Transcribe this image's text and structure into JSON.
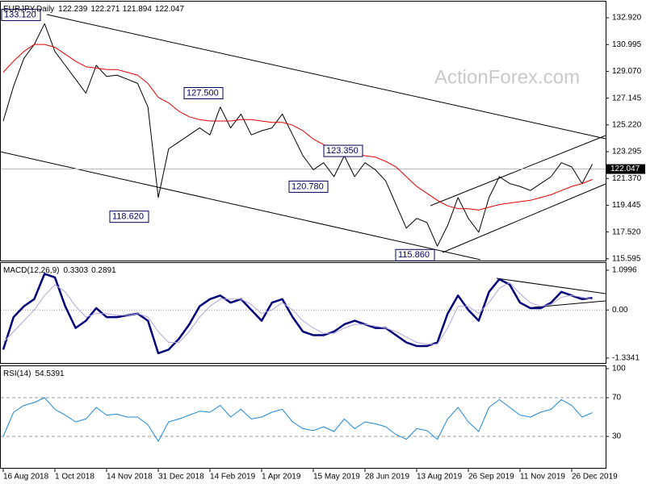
{
  "chart_data": [
    {
      "type": "line",
      "title": "EURJPY,Daily",
      "readings": [
        122.239,
        122.271,
        121.894,
        122.047
      ],
      "watermark": "ActionForex.com",
      "ylim": [
        115.47,
        134.08
      ],
      "yticks": [
        {
          "value": 132.92,
          "label": "132.920"
        },
        {
          "value": 130.995,
          "label": "130.995"
        },
        {
          "value": 129.07,
          "label": "129.070"
        },
        {
          "value": 127.145,
          "label": "127.145"
        },
        {
          "value": 125.22,
          "label": "125.220"
        },
        {
          "value": 123.295,
          "label": "123.295"
        },
        {
          "value": 121.37,
          "label": "121.370"
        },
        {
          "value": 119.445,
          "label": "119.445"
        },
        {
          "value": 117.52,
          "label": "117.520"
        },
        {
          "value": 115.595,
          "label": "115.595"
        }
      ],
      "last_price": 122.047,
      "annotations": [
        {
          "value": 133.12,
          "label": "133.120"
        },
        {
          "value": 127.5,
          "label": "127.500"
        },
        {
          "value": 123.35,
          "label": "123.350"
        },
        {
          "value": 120.78,
          "label": "120.780"
        },
        {
          "value": 118.62,
          "label": "118.620"
        },
        {
          "value": 115.86,
          "label": "115.860"
        }
      ],
      "series": [
        {
          "color": "#000000",
          "values": [
            125.5,
            128,
            130,
            131,
            132.5,
            130.5,
            129.5,
            128.5,
            127.5,
            129.5,
            128.7,
            128.8,
            128.5,
            128.2,
            126.5,
            120,
            123.5,
            124,
            124.5,
            125,
            124.5,
            126.5,
            125,
            126,
            124.5,
            124.8,
            125,
            126,
            124.5,
            123,
            122,
            122.5,
            121.5,
            123,
            121.5,
            122.5,
            122,
            121.2,
            119.5,
            117.8,
            118.5,
            118.2,
            116.5,
            118,
            120,
            118.5,
            117.5,
            120,
            121.5,
            121,
            120.8,
            120.5,
            121,
            121.5,
            122.5,
            122.2,
            121,
            122.4
          ]
        },
        {
          "color": "#e00000",
          "values": [
            129,
            129.8,
            130.5,
            131,
            131,
            130.8,
            130.3,
            129.8,
            129.4,
            129.3,
            129.2,
            129.2,
            129,
            128.8,
            128.2,
            127.2,
            126.8,
            126.2,
            125.8,
            125.6,
            125.5,
            125.5,
            125.5,
            125.6,
            125.6,
            125.5,
            125.4,
            125.4,
            125.2,
            124.8,
            124.2,
            123.8,
            123.5,
            123.3,
            123.2,
            123,
            122.9,
            122.6,
            122.2,
            121.5,
            120.8,
            120.3,
            119.8,
            119.4,
            119.2,
            119.2,
            119.1,
            119.3,
            119.5,
            119.6,
            119.7,
            119.8,
            120,
            120.2,
            120.5,
            120.8,
            121,
            121.3
          ]
        }
      ]
    },
    {
      "type": "line",
      "title": "MACD(12,26,9)",
      "readings": [
        0.3303,
        0.2891
      ],
      "ylim": [
        -1.47,
        1.3
      ],
      "yticks": [
        1.0996,
        {
          "value": 0,
          "label": "0.00"
        },
        -1.3341
      ],
      "levels": [
        0
      ],
      "series": [
        {
          "color": "#00007a",
          "values": [
            -1.1,
            -0.2,
            0.1,
            0.3,
            1.0,
            0.9,
            0.1,
            -0.5,
            -0.3,
            0.05,
            -0.2,
            -0.2,
            -0.15,
            -0.1,
            -0.3,
            -1.2,
            -1.1,
            -0.8,
            -0.4,
            0.1,
            0.3,
            0.4,
            0.2,
            0.3,
            0,
            -0.3,
            0.2,
            0.3,
            -0.2,
            -0.6,
            -0.7,
            -0.7,
            -0.6,
            -0.4,
            -0.3,
            -0.4,
            -0.5,
            -0.5,
            -0.7,
            -0.9,
            -1.0,
            -1.0,
            -0.9,
            -0.1,
            0.4,
            0,
            -0.3,
            0.5,
            0.85,
            0.7,
            0.2,
            0.05,
            0.05,
            0.2,
            0.5,
            0.4,
            0.3,
            0.33
          ]
        },
        {
          "color": "#b4a6d6",
          "values": [
            -0.9,
            -0.6,
            -0.3,
            0,
            0.4,
            0.7,
            0.5,
            0.1,
            -0.2,
            -0.1,
            -0.1,
            -0.15,
            -0.15,
            -0.1,
            -0.2,
            -0.6,
            -0.9,
            -0.9,
            -0.6,
            -0.2,
            0.1,
            0.3,
            0.3,
            0.3,
            0.15,
            -0.1,
            0,
            0.2,
            0,
            -0.3,
            -0.5,
            -0.65,
            -0.65,
            -0.5,
            -0.4,
            -0.4,
            -0.45,
            -0.5,
            -0.6,
            -0.75,
            -0.9,
            -0.95,
            -0.95,
            -0.5,
            0.1,
            0.1,
            -0.1,
            0.2,
            0.6,
            0.75,
            0.45,
            0.2,
            0.1,
            0.15,
            0.35,
            0.4,
            0.35,
            0.29
          ]
        }
      ]
    },
    {
      "type": "line",
      "title": "RSI(14)",
      "readings": [
        54.5391
      ],
      "ylim": [
        -2.5,
        102.5
      ],
      "yticks": [
        100,
        70,
        30
      ],
      "levels": [
        70,
        30
      ],
      "categories": [
        "16 Aug 2018",
        null,
        null,
        null,
        null,
        "1 Oct 2018",
        null,
        null,
        null,
        null,
        "14 Nov 2018",
        null,
        null,
        null,
        null,
        "31 Dec 2018",
        null,
        null,
        null,
        null,
        "14 Feb 2019",
        null,
        null,
        null,
        null,
        "1 Apr 2019",
        null,
        null,
        null,
        null,
        "15 May 2019",
        null,
        null,
        null,
        null,
        "28 Jun 2019",
        null,
        null,
        null,
        null,
        "13 Aug 2019",
        null,
        null,
        null,
        null,
        "26 Sep 2019",
        null,
        null,
        null,
        null,
        "11 Nov 2019",
        null,
        null,
        null,
        null,
        "26 Dec 2019",
        null,
        null
      ],
      "series": [
        {
          "color": "#1e88d8",
          "values": [
            30,
            55,
            62,
            65,
            70,
            58,
            52,
            45,
            48,
            60,
            52,
            53,
            50,
            50,
            42,
            25,
            45,
            48,
            52,
            56,
            55,
            62,
            50,
            58,
            48,
            50,
            55,
            58,
            45,
            38,
            36,
            40,
            35,
            48,
            38,
            45,
            43,
            40,
            32,
            27,
            38,
            36,
            27,
            48,
            60,
            45,
            35,
            60,
            68,
            60,
            52,
            50,
            55,
            58,
            68,
            62,
            50,
            54.5
          ]
        }
      ]
    }
  ]
}
